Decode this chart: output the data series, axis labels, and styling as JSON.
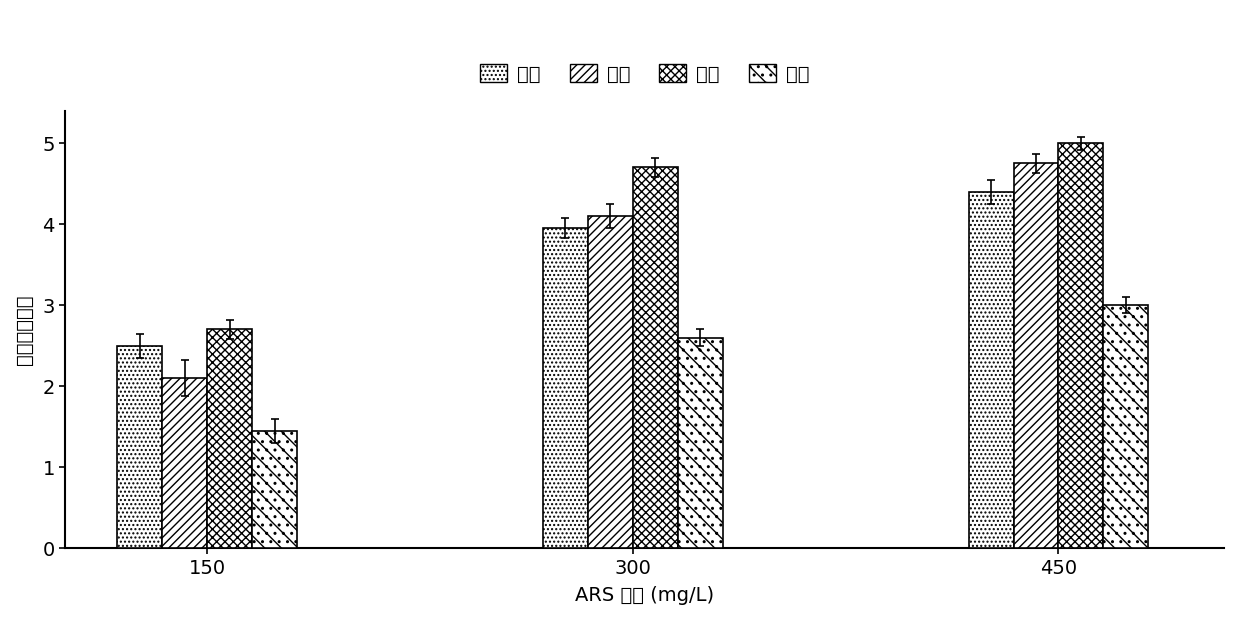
{
  "groups": [
    "150",
    "300",
    "450"
  ],
  "categories": [
    "鳞片",
    "鰻条",
    "鰻棘",
    "耳石"
  ],
  "values": [
    [
      2.5,
      2.1,
      2.7,
      1.45
    ],
    [
      3.95,
      4.1,
      4.7,
      2.6
    ],
    [
      4.4,
      4.75,
      5.0,
      3.0
    ]
  ],
  "errors": [
    [
      0.15,
      0.22,
      0.12,
      0.15
    ],
    [
      0.12,
      0.15,
      0.12,
      0.1
    ],
    [
      0.15,
      0.12,
      0.08,
      0.1
    ]
  ],
  "xlabel": "ARS 浓度 (mg/L)",
  "ylabel": "标记质量等级",
  "ylim": [
    0,
    5.4
  ],
  "yticks": [
    0,
    1,
    2,
    3,
    4,
    5
  ],
  "bar_width": 0.19,
  "background_color": "#ffffff",
  "bar_edge_color": "#000000",
  "figsize": [
    12.39,
    6.2
  ],
  "dpi": 100
}
